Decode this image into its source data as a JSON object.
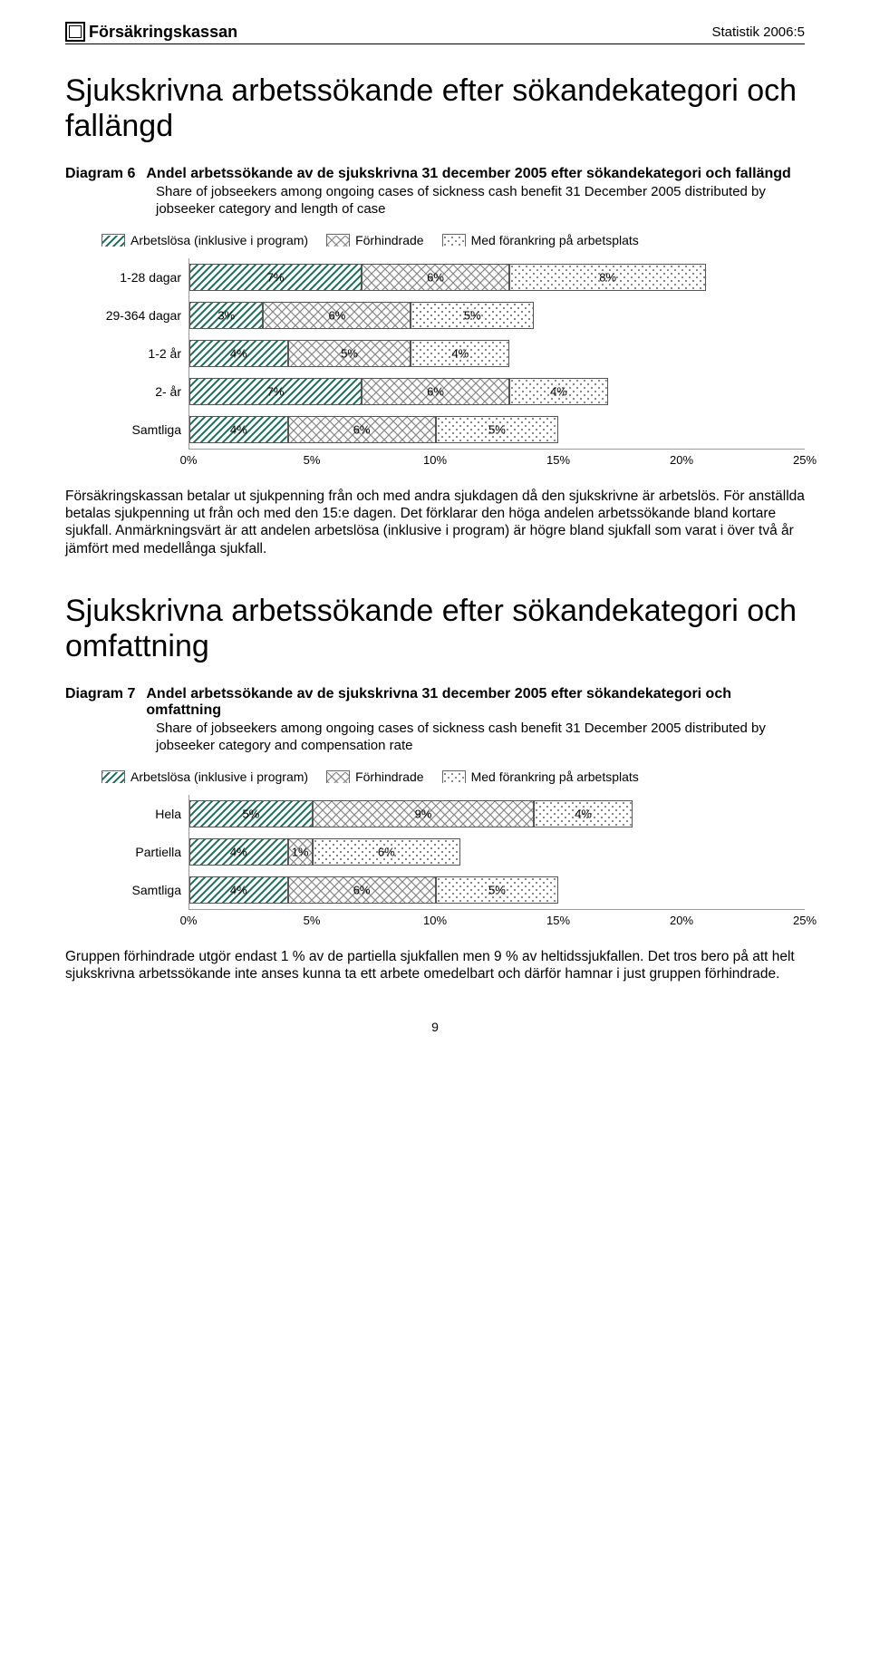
{
  "header": {
    "brand": "Försäkringskassan",
    "right": "Statistik 2006:5"
  },
  "section1": {
    "heading": "Sjukskrivna arbetssökande efter sökandekategori och fallängd",
    "diagram_label": "Diagram 6",
    "diagram_title": "Andel arbetssökande av de sjukskrivna 31 december 2005 efter sökandekategori och fallängd",
    "diagram_sub": "Share of jobseekers among ongoing cases of sickness cash benefit 31 December 2005 distributed by jobseeker category and length of case",
    "legend": [
      "Arbetslösa (inklusive i program)",
      "Förhindrade",
      "Med förankring på arbetsplats"
    ],
    "chart": {
      "x_max": 25,
      "ticks": [
        "0%",
        "5%",
        "10%",
        "15%",
        "20%",
        "25%"
      ],
      "categories": [
        "1-28 dagar",
        "29-364 dagar",
        "1-2 år",
        "2- år",
        "Samtliga"
      ],
      "series_patterns": [
        "hatch",
        "cross",
        "dots"
      ],
      "series_colors": [
        "#1a6b57",
        "#7a7a7a",
        "#333333"
      ],
      "rows": [
        {
          "values": [
            7,
            6,
            8
          ],
          "labels": [
            "7%",
            "6%",
            "8%"
          ]
        },
        {
          "values": [
            3,
            6,
            5
          ],
          "labels": [
            "3%",
            "6%",
            "5%"
          ]
        },
        {
          "values": [
            4,
            5,
            4
          ],
          "labels": [
            "4%",
            "5%",
            "4%"
          ]
        },
        {
          "values": [
            7,
            6,
            4
          ],
          "labels": [
            "7%",
            "6%",
            "4%"
          ]
        },
        {
          "values": [
            4,
            6,
            5
          ],
          "labels": [
            "4%",
            "6%",
            "5%"
          ]
        }
      ]
    },
    "body": "Försäkringskassan betalar ut sjukpenning från och med andra sjukdagen då den sjukskrivne är arbetslös. För anställda betalas sjukpenning ut från och med den 15:e dagen. Det förklarar den höga andelen arbetssökande bland kortare sjukfall. Anmärkningsvärt är att andelen arbetslösa (inklusive i program) är högre bland sjukfall som varat i över två år jämfört med medellånga sjukfall."
  },
  "section2": {
    "heading": "Sjukskrivna arbetssökande efter sökandekategori och omfattning",
    "diagram_label": "Diagram 7",
    "diagram_title": "Andel arbetssökande av de sjukskrivna 31 december 2005 efter sökandekategori och omfattning",
    "diagram_sub": "Share of jobseekers among ongoing cases of sickness cash benefit 31 December 2005 distributed by jobseeker category and compensation rate",
    "legend": [
      "Arbetslösa (inklusive i program)",
      "Förhindrade",
      "Med förankring på arbetsplats"
    ],
    "chart": {
      "x_max": 25,
      "ticks": [
        "0%",
        "5%",
        "10%",
        "15%",
        "20%",
        "25%"
      ],
      "categories": [
        "Hela",
        "Partiella",
        "Samtliga"
      ],
      "series_patterns": [
        "hatch",
        "cross",
        "dots"
      ],
      "series_colors": [
        "#1a6b57",
        "#7a7a7a",
        "#333333"
      ],
      "rows": [
        {
          "values": [
            5,
            9,
            4
          ],
          "labels": [
            "5%",
            "9%",
            "4%"
          ]
        },
        {
          "values": [
            4,
            1,
            6
          ],
          "labels": [
            "4%",
            "1%",
            "6%"
          ]
        },
        {
          "values": [
            4,
            6,
            5
          ],
          "labels": [
            "4%",
            "6%",
            "5%"
          ]
        }
      ]
    },
    "body": "Gruppen förhindrade utgör endast 1 % av de partiella sjukfallen men 9 % av heltidssjukfallen. Det tros bero på att helt sjukskrivna arbetssökande inte anses kunna ta ett arbete omedelbart och därför hamnar i just gruppen förhindrade."
  },
  "page_number": "9"
}
